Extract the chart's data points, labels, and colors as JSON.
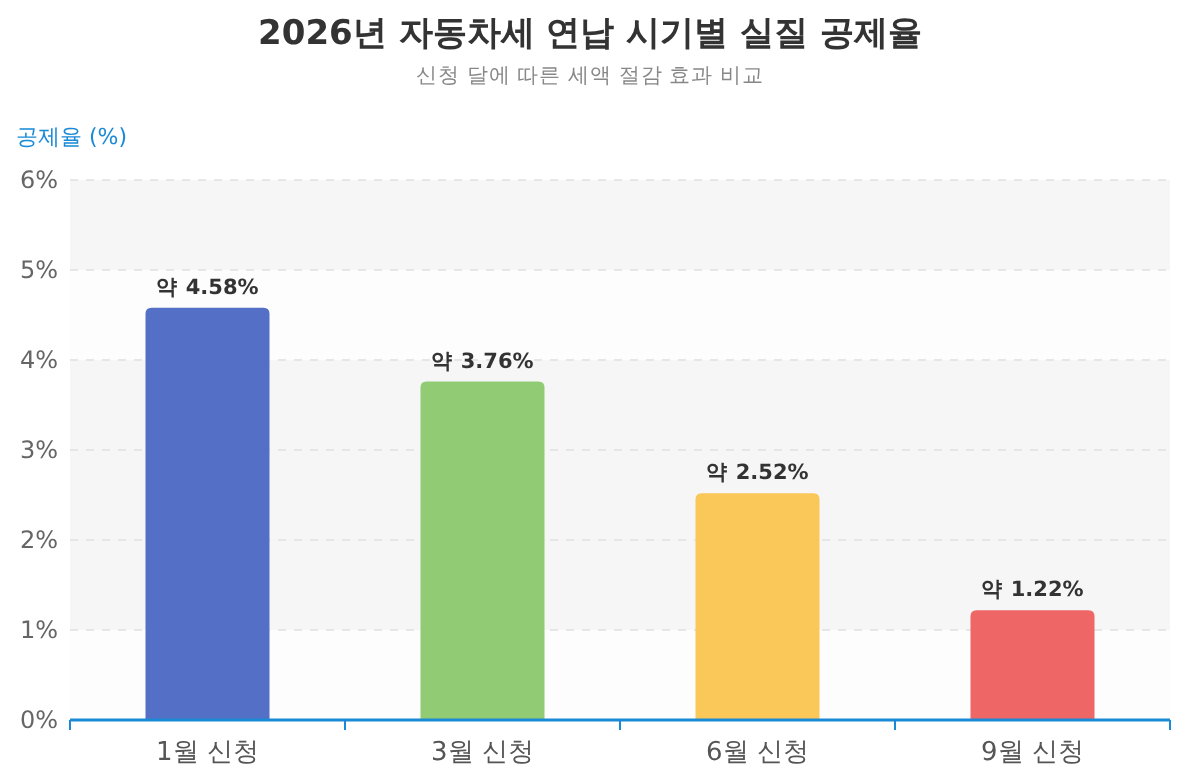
{
  "chart_data": {
    "type": "bar",
    "title": "2026년 자동차세 연납 시기별 실질 공제율",
    "subtitle": "신청 달에 따른 세액 절감 효과 비교",
    "ylabel": "공제율 (%)",
    "categories": [
      "1월 신청",
      "3월 신청",
      "6월 신청",
      "9월 신청"
    ],
    "values": [
      4.58,
      3.76,
      2.52,
      1.22
    ],
    "colors": [
      "#5470c6",
      "#91cc75",
      "#fac858",
      "#ee6666"
    ],
    "value_labels": [
      "약 4.58%",
      "약 3.76%",
      "약 2.52%",
      "약 1.22%"
    ],
    "ylim": [
      0,
      6
    ],
    "yticks": [
      {
        "value": 0,
        "label": "0%"
      },
      {
        "value": 1,
        "label": "1%"
      },
      {
        "value": 2,
        "label": "2%"
      },
      {
        "value": 3,
        "label": "3%"
      },
      {
        "value": 4,
        "label": "4%"
      },
      {
        "value": 5,
        "label": "5%"
      },
      {
        "value": 6,
        "label": "6%"
      }
    ],
    "grid": "y"
  }
}
